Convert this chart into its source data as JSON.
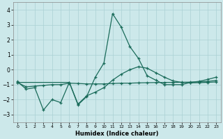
{
  "xlabel": "Humidex (Indice chaleur)",
  "background_color": "#cce8ea",
  "grid_color": "#aad0d4",
  "line_color": "#1a6b5a",
  "xlim": [
    -0.5,
    23.5
  ],
  "ylim": [
    -3.5,
    4.5
  ],
  "yticks": [
    -3,
    -2,
    -1,
    0,
    1,
    2,
    3,
    4
  ],
  "xticks": [
    0,
    1,
    2,
    3,
    4,
    5,
    6,
    7,
    8,
    9,
    10,
    11,
    12,
    13,
    14,
    15,
    16,
    17,
    18,
    19,
    20,
    21,
    22,
    23
  ],
  "line1_x": [
    0,
    1,
    2,
    3,
    4,
    5,
    6,
    7,
    8,
    9,
    10,
    11,
    12,
    13,
    14,
    15,
    16,
    17,
    18,
    19,
    20,
    21,
    22,
    23
  ],
  "line1_y": [
    -0.8,
    -1.3,
    -1.2,
    -2.7,
    -2.0,
    -2.2,
    -0.85,
    -2.35,
    -1.8,
    -0.5,
    0.45,
    3.75,
    2.85,
    1.55,
    0.75,
    -0.4,
    -0.7,
    -1.0,
    -1.0,
    -1.0,
    -0.85,
    -0.78,
    -0.65,
    -0.5
  ],
  "line2_x": [
    0,
    1,
    2,
    3,
    4,
    5,
    6,
    7,
    8,
    9,
    10,
    11,
    12,
    13,
    14,
    15,
    16,
    17,
    18,
    19,
    20,
    21,
    22,
    23
  ],
  "line2_y": [
    -0.85,
    -1.15,
    -1.1,
    -1.05,
    -1.0,
    -1.0,
    -0.9,
    -0.92,
    -0.95,
    -0.95,
    -0.95,
    -0.92,
    -0.9,
    -0.9,
    -0.88,
    -0.87,
    -0.86,
    -0.85,
    -0.85,
    -0.84,
    -0.83,
    -0.82,
    -0.78,
    -0.72
  ],
  "line3_x": [
    0,
    6,
    7,
    8,
    9,
    10,
    11,
    12,
    13,
    14,
    15,
    16,
    17,
    18,
    19,
    20,
    21,
    22,
    23
  ],
  "line3_y": [
    -0.85,
    -0.85,
    -2.3,
    -1.75,
    -1.5,
    -1.2,
    -0.7,
    -0.3,
    0.0,
    0.2,
    0.1,
    -0.2,
    -0.5,
    -0.75,
    -0.85,
    -0.88,
    -0.87,
    -0.85,
    -0.82
  ]
}
